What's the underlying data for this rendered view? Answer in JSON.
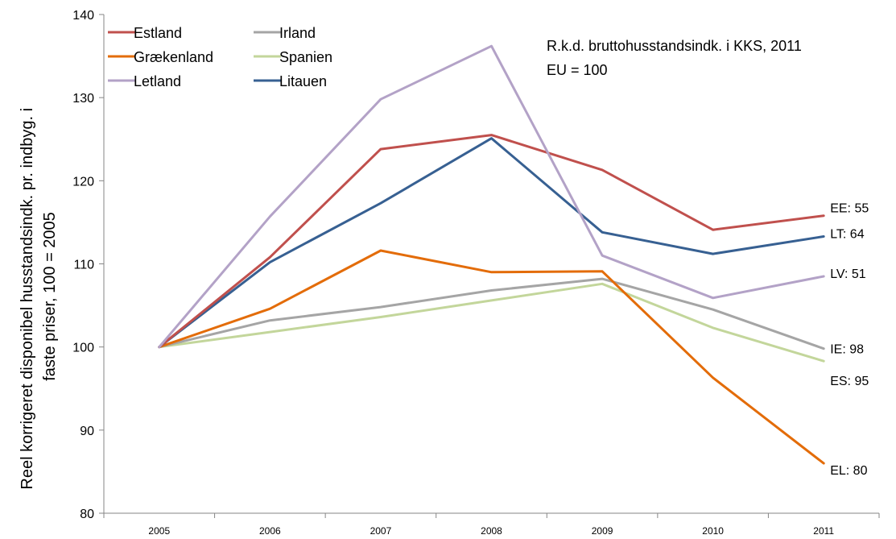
{
  "chart_data": {
    "type": "line",
    "x": [
      "2005",
      "2006",
      "2007",
      "2008",
      "2009",
      "2010",
      "2011"
    ],
    "ylabel_lines": [
      "Reel korrigeret disponibel husstandsindk. pr. indbyg. i",
      "faste priser, 100 = 2005"
    ],
    "xlabel": "",
    "ylim": [
      80,
      140
    ],
    "yticks": [
      80,
      90,
      100,
      110,
      120,
      130,
      140
    ],
    "grid": false,
    "legend_position": "top-left",
    "annotation_lines": [
      "R.k.d. bruttohusstandsindk. i KKS, 2011",
      "EU = 100"
    ],
    "series": [
      {
        "name": "Estland",
        "color": "#c0504d",
        "values": [
          100,
          110.8,
          123.8,
          125.5,
          121.3,
          114.1,
          115.8
        ],
        "end_label": "EE: 55"
      },
      {
        "name": "Irland",
        "color": "#a5a5a5",
        "values": [
          100,
          103.2,
          104.8,
          106.8,
          108.2,
          104.5,
          99.8
        ],
        "end_label": "IE: 98"
      },
      {
        "name": "Grækenland",
        "color": "#e36c09",
        "values": [
          100,
          104.6,
          111.6,
          109.0,
          109.1,
          96.3,
          86.0
        ],
        "end_label": "EL: 80"
      },
      {
        "name": "Spanien",
        "color": "#c3d69b",
        "values": [
          100,
          101.8,
          103.6,
          105.6,
          107.6,
          102.3,
          98.3
        ],
        "end_label": "ES: 95"
      },
      {
        "name": "Letland",
        "color": "#b3a2c7",
        "values": [
          100,
          115.7,
          129.8,
          136.2,
          111.0,
          105.9,
          108.5
        ],
        "end_label": "LV: 51"
      },
      {
        "name": "Litauen",
        "color": "#376092",
        "values": [
          100,
          110.2,
          117.3,
          125.1,
          113.8,
          111.2,
          113.3
        ],
        "end_label": "LT: 64"
      }
    ]
  }
}
